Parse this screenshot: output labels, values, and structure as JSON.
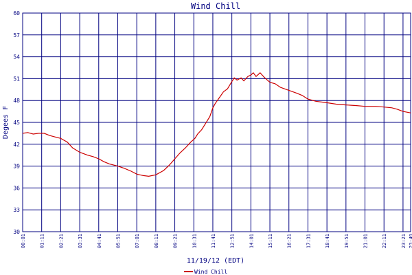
{
  "chart_data": {
    "type": "line",
    "title": "Wind Chill",
    "xlabel": "11/19/12 (EDT)",
    "ylabel": "Degees F",
    "ylim": [
      30,
      60
    ],
    "yticks": [
      30,
      33,
      36,
      39,
      42,
      45,
      48,
      51,
      54,
      57,
      60
    ],
    "xticks": [
      "00:01",
      "01:11",
      "02:21",
      "03:31",
      "04:41",
      "05:51",
      "07:01",
      "08:11",
      "09:21",
      "10:31",
      "11:41",
      "12:51",
      "14:01",
      "15:11",
      "16:21",
      "17:31",
      "18:41",
      "19:51",
      "21:01",
      "22:11",
      "23:21",
      "23:49"
    ],
    "grid": true,
    "legend_position": "bottom-center",
    "colors": {
      "series": "#cc0000",
      "grid": "#000080",
      "text": "#000080"
    },
    "series": [
      {
        "name": "Wind Chill",
        "points": [
          [
            "00:01",
            43.5
          ],
          [
            "00:20",
            43.6
          ],
          [
            "00:40",
            43.4
          ],
          [
            "01:00",
            43.5
          ],
          [
            "01:20",
            43.5
          ],
          [
            "01:40",
            43.2
          ],
          [
            "02:00",
            43.0
          ],
          [
            "02:21",
            42.8
          ],
          [
            "02:45",
            42.3
          ],
          [
            "03:05",
            41.5
          ],
          [
            "03:31",
            40.9
          ],
          [
            "04:00",
            40.5
          ],
          [
            "04:20",
            40.3
          ],
          [
            "04:41",
            40.0
          ],
          [
            "05:00",
            39.6
          ],
          [
            "05:20",
            39.3
          ],
          [
            "05:51",
            39.0
          ],
          [
            "06:15",
            38.7
          ],
          [
            "06:40",
            38.3
          ],
          [
            "07:01",
            37.9
          ],
          [
            "07:25",
            37.7
          ],
          [
            "07:45",
            37.6
          ],
          [
            "08:11",
            37.8
          ],
          [
            "08:40",
            38.4
          ],
          [
            "09:00",
            39.1
          ],
          [
            "09:21",
            40.0
          ],
          [
            "09:40",
            40.8
          ],
          [
            "10:00",
            41.5
          ],
          [
            "10:20",
            42.3
          ],
          [
            "10:35",
            42.8
          ],
          [
            "10:45",
            43.4
          ],
          [
            "11:00",
            44.0
          ],
          [
            "11:15",
            44.9
          ],
          [
            "11:30",
            45.8
          ],
          [
            "11:41",
            47.0
          ],
          [
            "11:50",
            47.6
          ],
          [
            "12:05",
            48.4
          ],
          [
            "12:20",
            49.2
          ],
          [
            "12:35",
            49.6
          ],
          [
            "12:51",
            50.6
          ],
          [
            "13:00",
            51.1
          ],
          [
            "13:10",
            50.8
          ],
          [
            "13:25",
            51.1
          ],
          [
            "13:35",
            50.7
          ],
          [
            "13:50",
            51.3
          ],
          [
            "14:01",
            51.5
          ],
          [
            "14:10",
            51.8
          ],
          [
            "14:20",
            51.3
          ],
          [
            "14:35",
            51.8
          ],
          [
            "14:50",
            51.2
          ],
          [
            "15:11",
            50.5
          ],
          [
            "15:30",
            50.3
          ],
          [
            "15:50",
            49.8
          ],
          [
            "16:21",
            49.4
          ],
          [
            "16:50",
            49.0
          ],
          [
            "17:10",
            48.7
          ],
          [
            "17:31",
            48.2
          ],
          [
            "18:00",
            47.9
          ],
          [
            "18:41",
            47.7
          ],
          [
            "19:15",
            47.5
          ],
          [
            "19:51",
            47.4
          ],
          [
            "20:30",
            47.3
          ],
          [
            "21:01",
            47.2
          ],
          [
            "21:40",
            47.2
          ],
          [
            "22:11",
            47.1
          ],
          [
            "22:40",
            47.0
          ],
          [
            "23:00",
            46.8
          ],
          [
            "23:21",
            46.5
          ],
          [
            "23:49",
            46.3
          ]
        ]
      }
    ]
  }
}
